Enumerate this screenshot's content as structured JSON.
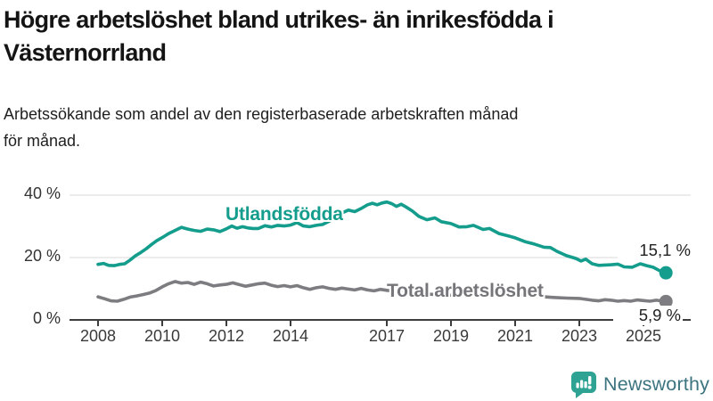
{
  "header": {
    "title": "Högre arbetslöshet bland utrikes- än inrikesfödda i\nVästernorrland",
    "subtitle": "Arbetssökande som andel av den registerbaserade arbetskraften månad\nför månad."
  },
  "chart_data": {
    "type": "line",
    "x_unit": "year (monthly series)",
    "xlim": [
      2007.1,
      2026.5
    ],
    "ylim": [
      0,
      43
    ],
    "grid": "horizontal",
    "legend_position": "inline-labels-on-lines",
    "axis_color": "#3d3d3d",
    "gridline_color": "#d8d8d8",
    "yticks": [
      {
        "value": 0,
        "label": "0 %"
      },
      {
        "value": 20,
        "label": "20 %"
      },
      {
        "value": 40,
        "label": "40 %"
      }
    ],
    "xticks": [
      {
        "value": 2008,
        "label": "2008"
      },
      {
        "value": 2010,
        "label": "2010"
      },
      {
        "value": 2012,
        "label": "2012"
      },
      {
        "value": 2014,
        "label": "2014"
      },
      {
        "value": 2017,
        "label": "2017"
      },
      {
        "value": 2019,
        "label": "2019"
      },
      {
        "value": 2021,
        "label": "2021"
      },
      {
        "value": 2023,
        "label": "2023"
      },
      {
        "value": 2025,
        "label": "2025"
      }
    ],
    "series": [
      {
        "name": "Utlandsfödda",
        "color": "#149d8c",
        "end_label": "15,1 %",
        "end_value": 15.1,
        "points": [
          [
            2008.0,
            17.8
          ],
          [
            2008.17,
            18.1
          ],
          [
            2008.33,
            17.5
          ],
          [
            2008.5,
            17.4
          ],
          [
            2008.67,
            17.8
          ],
          [
            2008.83,
            18.0
          ],
          [
            2009.0,
            19.2
          ],
          [
            2009.17,
            20.6
          ],
          [
            2009.33,
            21.6
          ],
          [
            2009.5,
            22.8
          ],
          [
            2009.67,
            24.2
          ],
          [
            2009.83,
            25.4
          ],
          [
            2010.0,
            26.4
          ],
          [
            2010.2,
            27.7
          ],
          [
            2010.4,
            28.7
          ],
          [
            2010.6,
            29.7
          ],
          [
            2010.8,
            29.1
          ],
          [
            2011.0,
            28.7
          ],
          [
            2011.2,
            28.4
          ],
          [
            2011.4,
            29.1
          ],
          [
            2011.6,
            28.9
          ],
          [
            2011.8,
            28.3
          ],
          [
            2012.0,
            29.2
          ],
          [
            2012.17,
            30.1
          ],
          [
            2012.33,
            29.4
          ],
          [
            2012.5,
            29.9
          ],
          [
            2012.67,
            29.5
          ],
          [
            2012.83,
            29.3
          ],
          [
            2013.0,
            29.3
          ],
          [
            2013.2,
            30.2
          ],
          [
            2013.4,
            29.8
          ],
          [
            2013.6,
            30.3
          ],
          [
            2013.8,
            30.1
          ],
          [
            2014.0,
            30.4
          ],
          [
            2014.2,
            31.2
          ],
          [
            2014.4,
            30.1
          ],
          [
            2014.6,
            29.9
          ],
          [
            2014.8,
            30.3
          ],
          [
            2015.0,
            30.6
          ],
          [
            2015.2,
            31.6
          ],
          [
            2015.4,
            33.0
          ],
          [
            2015.6,
            34.3
          ],
          [
            2015.8,
            35.2
          ],
          [
            2016.0,
            34.7
          ],
          [
            2016.2,
            35.7
          ],
          [
            2016.4,
            36.9
          ],
          [
            2016.55,
            37.4
          ],
          [
            2016.7,
            36.9
          ],
          [
            2016.85,
            37.5
          ],
          [
            2017.0,
            37.8
          ],
          [
            2017.15,
            37.3
          ],
          [
            2017.3,
            36.4
          ],
          [
            2017.45,
            37.1
          ],
          [
            2017.6,
            36.2
          ],
          [
            2017.8,
            34.9
          ],
          [
            2018.0,
            33.2
          ],
          [
            2018.25,
            32.1
          ],
          [
            2018.5,
            32.7
          ],
          [
            2018.7,
            31.5
          ],
          [
            2019.0,
            30.9
          ],
          [
            2019.25,
            29.8
          ],
          [
            2019.5,
            29.9
          ],
          [
            2019.7,
            30.3
          ],
          [
            2020.0,
            29.0
          ],
          [
            2020.2,
            29.3
          ],
          [
            2020.5,
            27.7
          ],
          [
            2020.8,
            26.9
          ],
          [
            2021.0,
            26.3
          ],
          [
            2021.3,
            25.1
          ],
          [
            2021.6,
            24.3
          ],
          [
            2021.9,
            23.3
          ],
          [
            2022.1,
            23.2
          ],
          [
            2022.3,
            22.0
          ],
          [
            2022.6,
            20.6
          ],
          [
            2022.9,
            19.7
          ],
          [
            2023.05,
            18.9
          ],
          [
            2023.2,
            19.5
          ],
          [
            2023.4,
            18.0
          ],
          [
            2023.6,
            17.5
          ],
          [
            2023.8,
            17.6
          ],
          [
            2024.0,
            17.7
          ],
          [
            2024.2,
            17.9
          ],
          [
            2024.4,
            17.0
          ],
          [
            2024.65,
            16.9
          ],
          [
            2024.9,
            18.0
          ],
          [
            2025.1,
            17.4
          ],
          [
            2025.3,
            16.9
          ],
          [
            2025.5,
            15.8
          ],
          [
            2025.7,
            15.1
          ]
        ]
      },
      {
        "name": "Total arbetslöshet",
        "color": "#7d7d81",
        "end_label": "5,9 %",
        "end_value": 5.9,
        "points": [
          [
            2008.0,
            7.4
          ],
          [
            2008.2,
            6.8
          ],
          [
            2008.4,
            6.1
          ],
          [
            2008.6,
            6.0
          ],
          [
            2008.8,
            6.6
          ],
          [
            2009.0,
            7.3
          ],
          [
            2009.2,
            7.7
          ],
          [
            2009.4,
            8.1
          ],
          [
            2009.6,
            8.6
          ],
          [
            2009.8,
            9.4
          ],
          [
            2010.0,
            10.6
          ],
          [
            2010.2,
            11.6
          ],
          [
            2010.4,
            12.3
          ],
          [
            2010.6,
            11.8
          ],
          [
            2010.8,
            12.0
          ],
          [
            2011.0,
            11.4
          ],
          [
            2011.2,
            12.1
          ],
          [
            2011.4,
            11.6
          ],
          [
            2011.6,
            10.9
          ],
          [
            2011.8,
            11.2
          ],
          [
            2012.0,
            11.4
          ],
          [
            2012.2,
            11.9
          ],
          [
            2012.4,
            11.3
          ],
          [
            2012.6,
            10.8
          ],
          [
            2012.8,
            11.2
          ],
          [
            2013.0,
            11.6
          ],
          [
            2013.2,
            11.8
          ],
          [
            2013.4,
            11.1
          ],
          [
            2013.6,
            10.7
          ],
          [
            2013.8,
            11.0
          ],
          [
            2014.0,
            10.6
          ],
          [
            2014.2,
            11.0
          ],
          [
            2014.4,
            10.3
          ],
          [
            2014.6,
            9.8
          ],
          [
            2014.8,
            10.3
          ],
          [
            2015.0,
            10.6
          ],
          [
            2015.2,
            10.1
          ],
          [
            2015.4,
            9.8
          ],
          [
            2015.6,
            10.2
          ],
          [
            2015.8,
            9.9
          ],
          [
            2016.0,
            9.6
          ],
          [
            2016.2,
            10.1
          ],
          [
            2016.4,
            9.6
          ],
          [
            2016.6,
            9.3
          ],
          [
            2016.8,
            9.8
          ],
          [
            2017.0,
            9.5
          ],
          [
            2017.3,
            9.1
          ],
          [
            2017.6,
            8.8
          ],
          [
            2018.0,
            8.5
          ],
          [
            2018.4,
            8.2
          ],
          [
            2018.8,
            8.0
          ],
          [
            2019.2,
            7.8
          ],
          [
            2019.6,
            7.7
          ],
          [
            2020.0,
            8.4
          ],
          [
            2020.3,
            9.1
          ],
          [
            2020.6,
            8.8
          ],
          [
            2021.0,
            8.4
          ],
          [
            2021.4,
            7.9
          ],
          [
            2021.8,
            7.5
          ],
          [
            2022.2,
            7.2
          ],
          [
            2022.6,
            7.0
          ],
          [
            2023.0,
            6.9
          ],
          [
            2023.2,
            6.6
          ],
          [
            2023.4,
            6.3
          ],
          [
            2023.6,
            6.1
          ],
          [
            2023.8,
            6.5
          ],
          [
            2024.0,
            6.3
          ],
          [
            2024.2,
            6.0
          ],
          [
            2024.4,
            6.2
          ],
          [
            2024.6,
            6.0
          ],
          [
            2024.8,
            6.4
          ],
          [
            2025.0,
            6.2
          ],
          [
            2025.2,
            6.0
          ],
          [
            2025.4,
            6.3
          ],
          [
            2025.55,
            6.1
          ],
          [
            2025.7,
            5.9
          ]
        ]
      }
    ]
  },
  "branding": {
    "brand": "Newsworthy",
    "icon": "bar-chart-speech-bubble-icon",
    "icon_color": "#2ea394",
    "wordmark_color": "#3c7480"
  }
}
